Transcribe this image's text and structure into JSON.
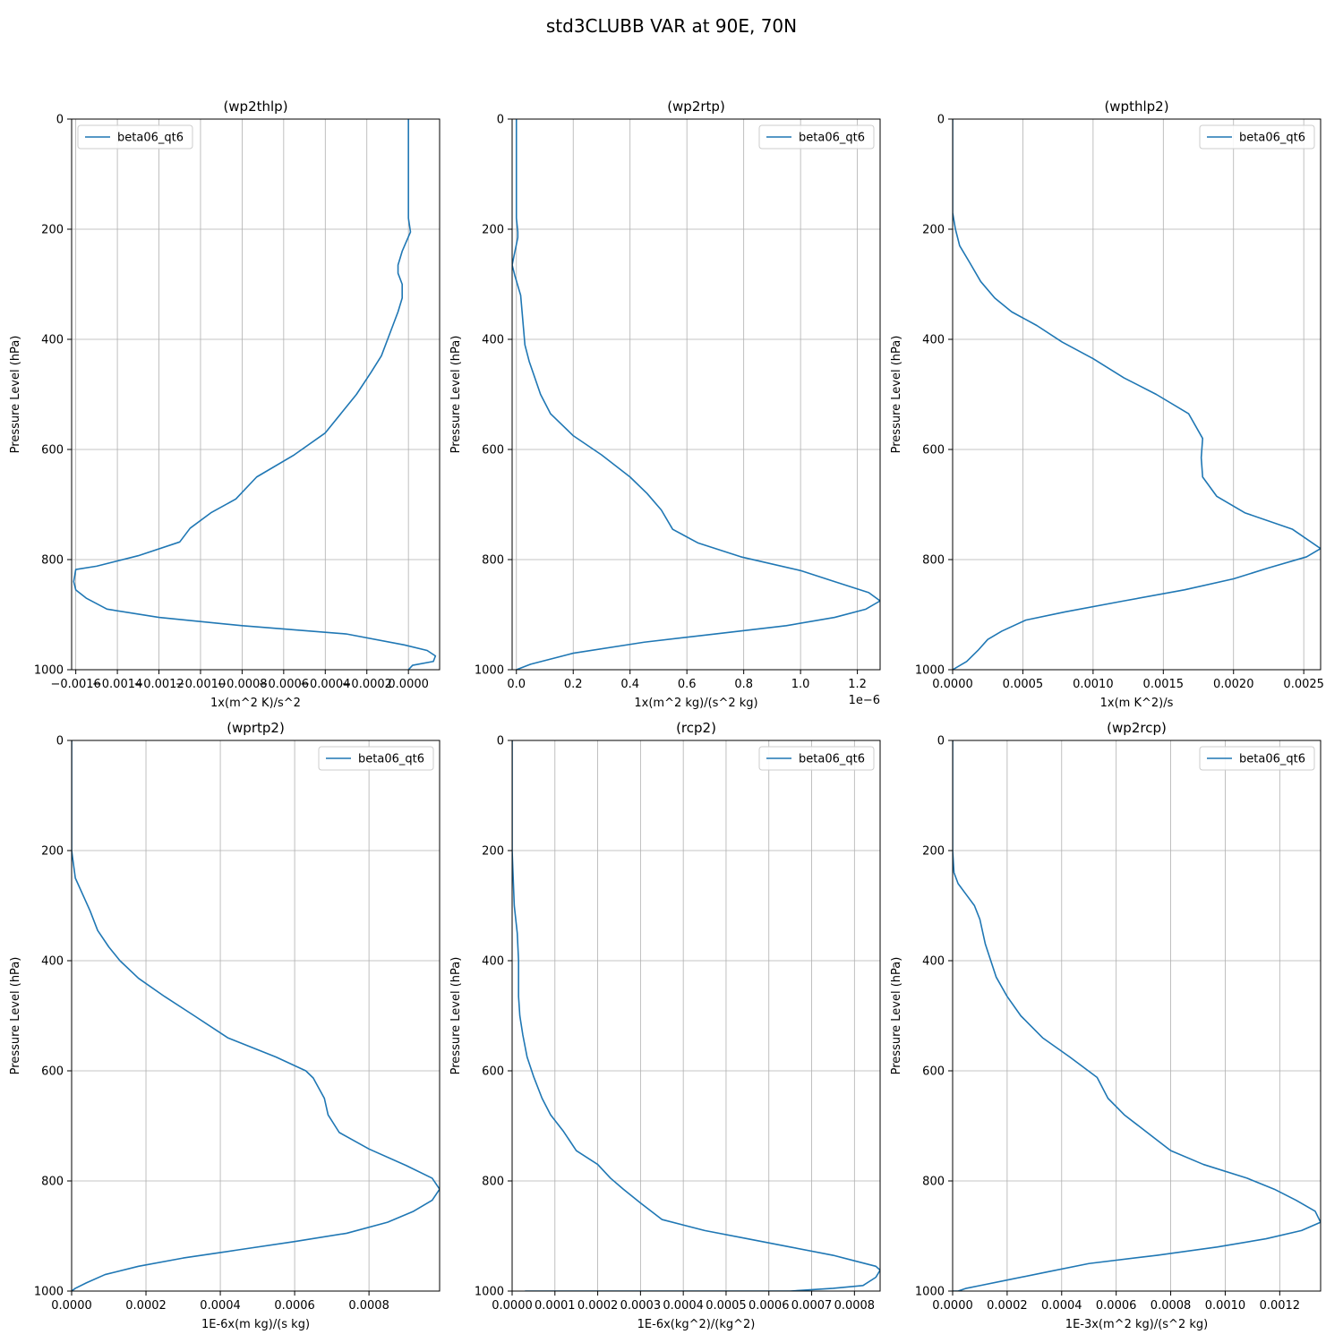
{
  "figure": {
    "title": "std3CLUBB VAR at 90E, 70N"
  },
  "chart_data": [
    {
      "type": "line",
      "title": "(wp2thlp)",
      "xlabel": "1x(m^2 K)/s^2",
      "ylabel": "Pressure Level (hPa)",
      "xlim": [
        -0.00162,
        0.00015
      ],
      "ylim": [
        1000,
        0
      ],
      "xticks": [
        -0.0016,
        -0.0014,
        -0.0012,
        -0.001,
        -0.0008,
        -0.0006,
        -0.0004,
        -0.0002,
        0.0
      ],
      "xticklabels": [
        "−0.0016",
        "−0.0014",
        "−0.0012",
        "−0.0010",
        "−0.0008",
        "−0.0006",
        "−0.0004",
        "−0.0002",
        "0.0000"
      ],
      "yticks": [
        0,
        200,
        400,
        600,
        800,
        1000
      ],
      "yticklabels": [
        "0",
        "200",
        "400",
        "600",
        "800",
        "1000"
      ],
      "offset_text": "",
      "grid": true,
      "legend": "upper left",
      "series": [
        {
          "name": "beta06_qt6",
          "color": "#1f77b4",
          "x": [
            0.0,
            0.0,
            0.0,
            1e-05,
            -3e-05,
            -5e-05,
            -5e-05,
            -3e-05,
            -3e-05,
            -5e-05,
            -0.0001,
            -0.00013,
            -0.00018,
            -0.00025,
            -0.0004,
            -0.00055,
            -0.00073,
            -0.00083,
            -0.00095,
            -0.00105,
            -0.0011,
            -0.0013,
            -0.0015,
            -0.0016,
            -0.00161,
            -0.0016,
            -0.00155,
            -0.00145,
            -0.0012,
            -0.0008,
            -0.0003,
            -2e-05,
            9e-05,
            0.00013,
            0.00012,
            2e-05,
            0.0
          ],
          "y": [
            0,
            100,
            180,
            205,
            240,
            265,
            280,
            300,
            325,
            350,
            400,
            430,
            460,
            500,
            570,
            610,
            650,
            690,
            715,
            743,
            768,
            793,
            812,
            818,
            840,
            855,
            870,
            890,
            905,
            920,
            935,
            955,
            965,
            975,
            985,
            992,
            1000
          ]
        }
      ]
    },
    {
      "type": "line",
      "title": "(wp2rtp)",
      "xlabel": "1x(m^2 kg)/(s^2 kg)",
      "ylabel": "Pressure Level (hPa)",
      "xlim": [
        -0.015,
        1.28
      ],
      "ylim": [
        1000,
        0
      ],
      "xticks": [
        0.0,
        0.2,
        0.4,
        0.6,
        0.8,
        1.0,
        1.2
      ],
      "xticklabels": [
        "0.0",
        "0.2",
        "0.4",
        "0.6",
        "0.8",
        "1.0",
        "1.2"
      ],
      "yticks": [
        0,
        200,
        400,
        600,
        800,
        1000
      ],
      "yticklabels": [
        "0",
        "200",
        "400",
        "600",
        "800",
        "1000"
      ],
      "offset_text": "1e−6",
      "grid": true,
      "legend": "upper right",
      "series": [
        {
          "name": "beta06_qt6",
          "color": "#1f77b4",
          "x": [
            0.0,
            0.0,
            0.0,
            0.005,
            0.005,
            -0.005,
            -0.015,
            -0.005,
            0.015,
            0.02,
            0.025,
            0.03,
            0.045,
            0.065,
            0.085,
            0.12,
            0.2,
            0.3,
            0.4,
            0.46,
            0.51,
            0.55,
            0.64,
            0.79,
            1.0,
            1.12,
            1.24,
            1.28,
            1.23,
            1.12,
            0.95,
            0.7,
            0.45,
            0.2,
            0.05,
            0.0
          ],
          "y": [
            0,
            100,
            180,
            205,
            215,
            240,
            265,
            285,
            320,
            350,
            380,
            410,
            440,
            470,
            500,
            535,
            575,
            610,
            650,
            680,
            710,
            745,
            770,
            795,
            820,
            840,
            860,
            875,
            890,
            905,
            920,
            935,
            950,
            970,
            990,
            1000
          ]
        }
      ]
    },
    {
      "type": "line",
      "title": "(wpthlp2)",
      "xlabel": "1x(m K^2)/s",
      "ylabel": "Pressure Level (hPa)",
      "xlim": [
        0.0,
        0.00262
      ],
      "ylim": [
        1000,
        0
      ],
      "xticks": [
        0.0,
        0.0005,
        0.001,
        0.0015,
        0.002,
        0.0025
      ],
      "xticklabels": [
        "0.0000",
        "0.0005",
        "0.0010",
        "0.0015",
        "0.0020",
        "0.0025"
      ],
      "yticks": [
        0,
        200,
        400,
        600,
        800,
        1000
      ],
      "yticklabels": [
        "0",
        "200",
        "400",
        "600",
        "800",
        "1000"
      ],
      "offset_text": "",
      "grid": true,
      "legend": "upper right",
      "series": [
        {
          "name": "beta06_qt6",
          "color": "#1f77b4",
          "x": [
            0.0,
            0.0,
            0.0,
            2e-05,
            5e-05,
            0.00012,
            0.0002,
            0.0003,
            0.00042,
            0.0006,
            0.00078,
            0.001,
            0.00122,
            0.00145,
            0.00168,
            0.00178,
            0.00177,
            0.00178,
            0.00188,
            0.00208,
            0.00242,
            0.00262,
            0.00252,
            0.00225,
            0.002,
            0.00165,
            0.00122,
            0.0008,
            0.00052,
            0.00035,
            0.00025,
            0.00018,
            0.0001,
            0.0
          ],
          "y": [
            0,
            100,
            170,
            200,
            230,
            260,
            295,
            325,
            350,
            375,
            405,
            435,
            470,
            500,
            535,
            580,
            615,
            650,
            685,
            715,
            745,
            780,
            795,
            815,
            835,
            855,
            875,
            895,
            910,
            930,
            945,
            965,
            985,
            1000
          ]
        }
      ]
    },
    {
      "type": "line",
      "title": "(wprtp2)",
      "xlabel": "1E-6x(m kg)/(s kg)",
      "ylabel": "Pressure Level (hPa)",
      "xlim": [
        0.0,
        0.00099
      ],
      "ylim": [
        1000,
        0
      ],
      "xticks": [
        0.0,
        0.0002,
        0.0004,
        0.0006,
        0.0008
      ],
      "xticklabels": [
        "0.0000",
        "0.0002",
        "0.0004",
        "0.0006",
        "0.0008"
      ],
      "yticks": [
        0,
        200,
        400,
        600,
        800,
        1000
      ],
      "yticklabels": [
        "0",
        "200",
        "400",
        "600",
        "800",
        "1000"
      ],
      "offset_text": "",
      "grid": true,
      "legend": "upper right",
      "series": [
        {
          "name": "beta06_qt6",
          "color": "#1f77b4",
          "x": [
            0.0,
            0.0,
            0.0,
            1e-05,
            3e-05,
            5e-05,
            7e-05,
            0.0001,
            0.00013,
            0.00018,
            0.00025,
            0.00033,
            0.00042,
            0.00055,
            0.00063,
            0.00065,
            0.00068,
            0.00069,
            0.00072,
            0.0008,
            0.0009,
            0.00097,
            0.00099,
            0.00097,
            0.00092,
            0.00085,
            0.00074,
            0.0006,
            0.00045,
            0.0003,
            0.00018,
            9e-05,
            4e-05,
            1e-05,
            0.0
          ],
          "y": [
            0,
            100,
            200,
            250,
            280,
            310,
            345,
            375,
            400,
            432,
            465,
            500,
            540,
            575,
            600,
            613,
            650,
            680,
            712,
            742,
            772,
            795,
            815,
            835,
            855,
            875,
            895,
            910,
            925,
            940,
            955,
            970,
            985,
            995,
            1000
          ]
        }
      ]
    },
    {
      "type": "line",
      "title": "(rcp2)",
      "xlabel": "1E-6x(kg^2)/(kg^2)",
      "ylabel": "Pressure Level (hPa)",
      "xlim": [
        0.0,
        0.00086
      ],
      "ylim": [
        1000,
        0
      ],
      "xticks": [
        0.0,
        0.0001,
        0.0002,
        0.0003,
        0.0004,
        0.0005,
        0.0006,
        0.0007,
        0.0008
      ],
      "xticklabels": [
        "0.0000",
        "0.0001",
        "0.0002",
        "0.0003",
        "0.0004",
        "0.0005",
        "0.0006",
        "0.0007",
        "0.0008"
      ],
      "yticks": [
        0,
        200,
        400,
        600,
        800,
        1000
      ],
      "yticklabels": [
        "0",
        "200",
        "400",
        "600",
        "800",
        "1000"
      ],
      "offset_text": "",
      "grid": true,
      "legend": "upper right",
      "series": [
        {
          "name": "beta06_qt6",
          "color": "#1f77b4",
          "x": [
            0.0,
            0.0,
            0.0,
            2e-06,
            5e-06,
            1.2e-05,
            1.5e-05,
            1.5e-05,
            1.8e-05,
            2.5e-05,
            3.5e-05,
            5e-05,
            7e-05,
            9e-05,
            0.00012,
            0.00015,
            0.0002,
            0.00023,
            0.00026,
            0.0003,
            0.00035,
            0.00045,
            0.00055,
            0.00065,
            0.00075,
            0.0008,
            0.00085,
            0.00086,
            0.00085,
            0.00082,
            0.00075,
            0.00065,
            0.0004,
            0.0002,
            0.0001,
            6e-05,
            3e-05
          ],
          "y": [
            0,
            100,
            200,
            240,
            300,
            350,
            400,
            465,
            500,
            535,
            575,
            610,
            650,
            680,
            710,
            745,
            770,
            795,
            815,
            840,
            870,
            890,
            905,
            920,
            935,
            945,
            955,
            962,
            975,
            990,
            995,
            1000,
            1000,
            1000,
            1000,
            1000,
            1000
          ]
        }
      ]
    },
    {
      "type": "line",
      "title": "(wp2rcp)",
      "xlabel": "1E-3x(m^2 kg)/(s^2 kg)",
      "ylabel": "Pressure Level (hPa)",
      "xlim": [
        0.0,
        0.00135
      ],
      "ylim": [
        1000,
        0
      ],
      "xticks": [
        0.0,
        0.0002,
        0.0004,
        0.0006,
        0.0008,
        0.001,
        0.0012
      ],
      "xticklabels": [
        "0.0000",
        "0.0002",
        "0.0004",
        "0.0006",
        "0.0008",
        "0.0010",
        "0.0012"
      ],
      "yticks": [
        0,
        200,
        400,
        600,
        800,
        1000
      ],
      "yticklabels": [
        "0",
        "200",
        "400",
        "600",
        "800",
        "1000"
      ],
      "offset_text": "",
      "grid": true,
      "legend": "upper right",
      "series": [
        {
          "name": "beta06_qt6",
          "color": "#1f77b4",
          "x": [
            0.0,
            0.0,
            0.0,
            5e-06,
            2e-05,
            5e-05,
            8e-05,
            0.0001,
            0.00012,
            0.00014,
            0.00016,
            0.0002,
            0.00025,
            0.00033,
            0.00043,
            0.00053,
            0.00057,
            0.00063,
            0.0008,
            0.00092,
            0.00108,
            0.00118,
            0.00126,
            0.00133,
            0.00135,
            0.00128,
            0.00115,
            0.00097,
            0.00075,
            0.0005,
            0.00035,
            0.0002,
            0.0001,
            5e-05,
            2e-05,
            0.0
          ],
          "y": [
            0,
            100,
            200,
            240,
            260,
            280,
            300,
            325,
            370,
            400,
            430,
            465,
            500,
            540,
            575,
            612,
            650,
            680,
            745,
            770,
            795,
            815,
            835,
            855,
            875,
            890,
            905,
            920,
            935,
            950,
            965,
            980,
            990,
            995,
            1000,
            1000
          ]
        }
      ]
    }
  ]
}
